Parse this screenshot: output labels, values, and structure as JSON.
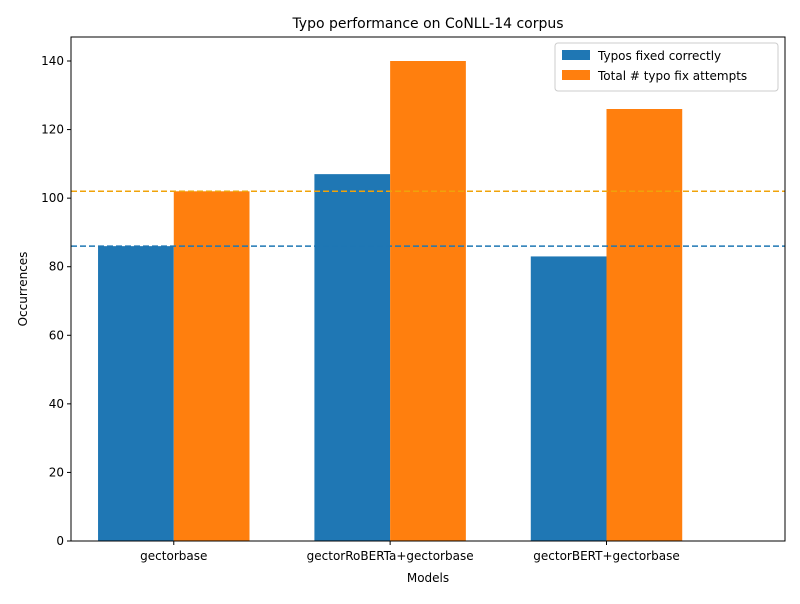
{
  "chart_data": {
    "type": "bar",
    "title": "Typo performance on CoNLL-14 corpus",
    "xlabel": "Models",
    "ylabel": "Occurrences",
    "categories": [
      "gectorbase",
      "gectorRoBERTa+gectorbase",
      "gectorBERT+gectorbase"
    ],
    "series": [
      {
        "name": "Typos fixed correctly",
        "values": [
          86,
          107,
          83
        ],
        "color": "#1f77b4"
      },
      {
        "name": "Total # typo fix attempts",
        "values": [
          102,
          140,
          126
        ],
        "color": "#ff7f0e"
      }
    ],
    "reference_lines": [
      {
        "value": 86,
        "color": "#1f77b4",
        "style": "dashed"
      },
      {
        "value": 102,
        "color": "#f0a30a",
        "style": "dashed"
      }
    ],
    "ylim": [
      0,
      147
    ],
    "yticks": [
      "0",
      "20",
      "40",
      "60",
      "80",
      "100",
      "120",
      "140"
    ],
    "grid": false,
    "legend_position": "top-right"
  }
}
